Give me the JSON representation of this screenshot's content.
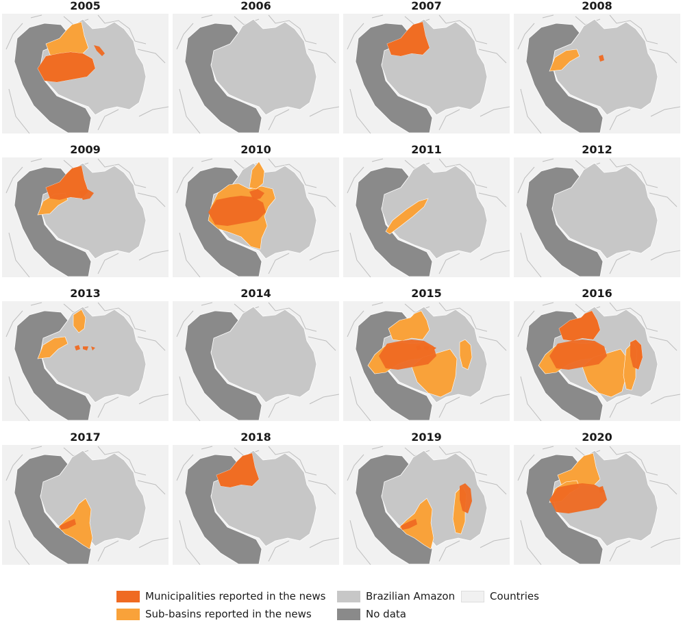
{
  "panels": [
    {
      "year": "2005",
      "muni": [
        "wcentral",
        "nestreak"
      ],
      "sub": [
        "northwest",
        "wcentral"
      ]
    },
    {
      "year": "2006",
      "muni": [],
      "sub": []
    },
    {
      "year": "2007",
      "muni": [
        "northwest"
      ],
      "sub": [
        "northwest"
      ]
    },
    {
      "year": "2008",
      "muni": [
        "nspot"
      ],
      "sub": [
        "westbelt"
      ]
    },
    {
      "year": "2009",
      "muni": [
        "northwest",
        "eastpatch"
      ],
      "sub": [
        "northwest",
        "westbelt"
      ]
    },
    {
      "year": "2010",
      "muni": [
        "wcentral",
        "eastpatch"
      ],
      "sub": [
        "bigcenter",
        "northnub"
      ]
    },
    {
      "year": "2011",
      "muni": [],
      "sub": [
        "diag"
      ]
    },
    {
      "year": "2012",
      "muni": [],
      "sub": []
    },
    {
      "year": "2013",
      "muni": [
        "spots"
      ],
      "sub": [
        "northblob",
        "westbelt"
      ]
    },
    {
      "year": "2014",
      "muni": [],
      "sub": []
    },
    {
      "year": "2015",
      "muni": [
        "spots",
        "wcentral"
      ],
      "sub": [
        "north15",
        "west15",
        "south15",
        "eaststrip"
      ]
    },
    {
      "year": "2016",
      "muni": [
        "north15",
        "eaststrip",
        "wcentral"
      ],
      "sub": [
        "north15",
        "west15",
        "south15",
        "eaststrip",
        "eastcol"
      ]
    },
    {
      "year": "2017",
      "muni": [
        "lowdiag"
      ],
      "sub": [
        "southcentral"
      ]
    },
    {
      "year": "2018",
      "muni": [
        "northwest"
      ],
      "sub": [
        "northwest"
      ]
    },
    {
      "year": "2019",
      "muni": [
        "lowdiag",
        "eaststrip"
      ],
      "sub": [
        "southcentral",
        "eastcol"
      ]
    },
    {
      "year": "2020",
      "muni": [
        "wcentral",
        "nspot"
      ],
      "sub": [
        "northwest",
        "westbelt"
      ]
    }
  ],
  "legend": [
    {
      "label": "Municipalities reported in the news",
      "color": "#ef6a22"
    },
    {
      "label": "Sub-basins reported in the news",
      "color": "#f9a23a"
    },
    {
      "label": "Brazilian Amazon",
      "color": "#c7c7c7"
    },
    {
      "label": "No data",
      "color": "#8a8a8a"
    },
    {
      "label": "Countries",
      "color": "#f1f1f1"
    }
  ],
  "colors": {
    "municipality": "#ef6a22",
    "subbasin": "#f9a23a",
    "amazon": "#c7c7c7",
    "nodata": "#8a8a8a",
    "country": "#f1f1f1"
  }
}
